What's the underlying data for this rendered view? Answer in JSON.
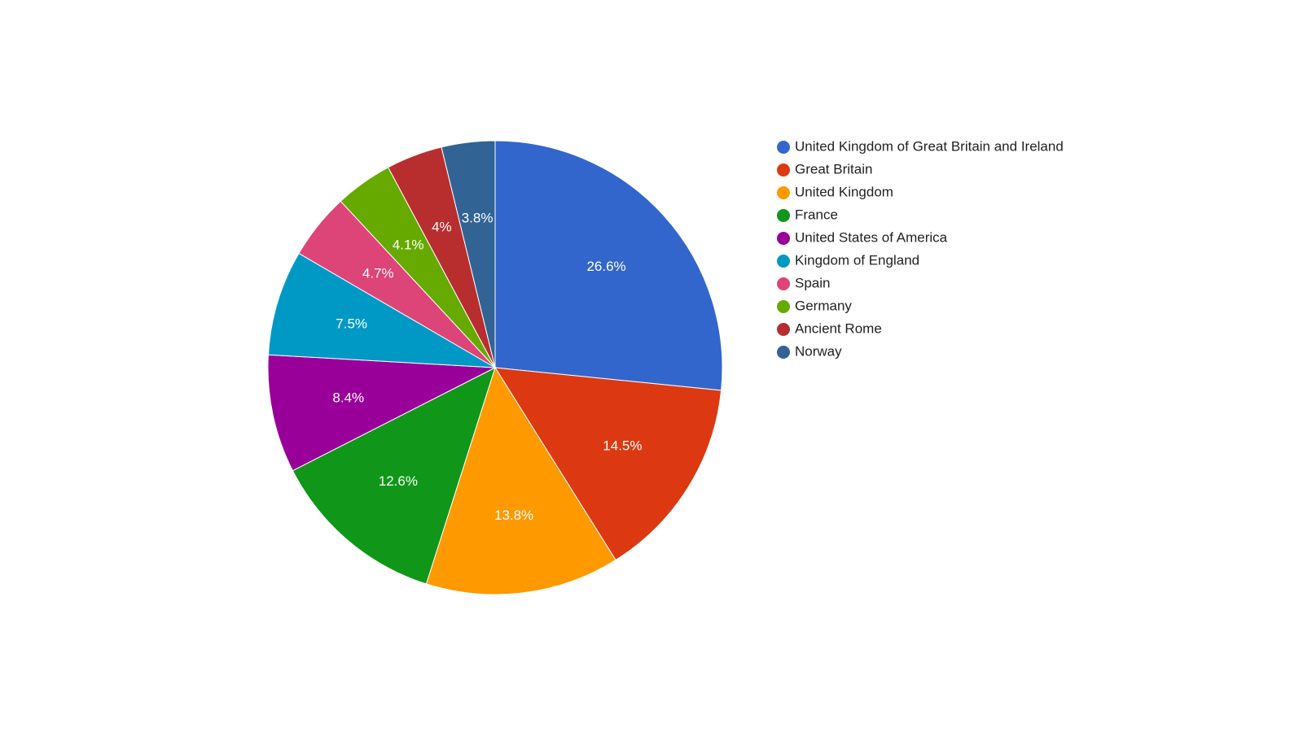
{
  "chart_data": {
    "type": "pie",
    "title": "",
    "legend_position": "right",
    "slices": [
      {
        "label": "United Kingdom of Great Britain and Ireland",
        "value": 26.6,
        "display": "26.6%",
        "color": "#3366cc"
      },
      {
        "label": "Great Britain",
        "value": 14.5,
        "display": "14.5%",
        "color": "#dc3912"
      },
      {
        "label": "United Kingdom",
        "value": 13.8,
        "display": "13.8%",
        "color": "#ff9900"
      },
      {
        "label": "France",
        "value": 12.6,
        "display": "12.6%",
        "color": "#109618"
      },
      {
        "label": "United States of America",
        "value": 8.4,
        "display": "8.4%",
        "color": "#990099"
      },
      {
        "label": "Kingdom of England",
        "value": 7.5,
        "display": "7.5%",
        "color": "#0099c6"
      },
      {
        "label": "Spain",
        "value": 4.7,
        "display": "4.7%",
        "color": "#dd4477"
      },
      {
        "label": "Germany",
        "value": 4.1,
        "display": "4.1%",
        "color": "#66aa00"
      },
      {
        "label": "Ancient Rome",
        "value": 4.0,
        "display": "4%",
        "color": "#b82e2e"
      },
      {
        "label": "Norway",
        "value": 3.8,
        "display": "3.8%",
        "color": "#316395"
      }
    ]
  }
}
